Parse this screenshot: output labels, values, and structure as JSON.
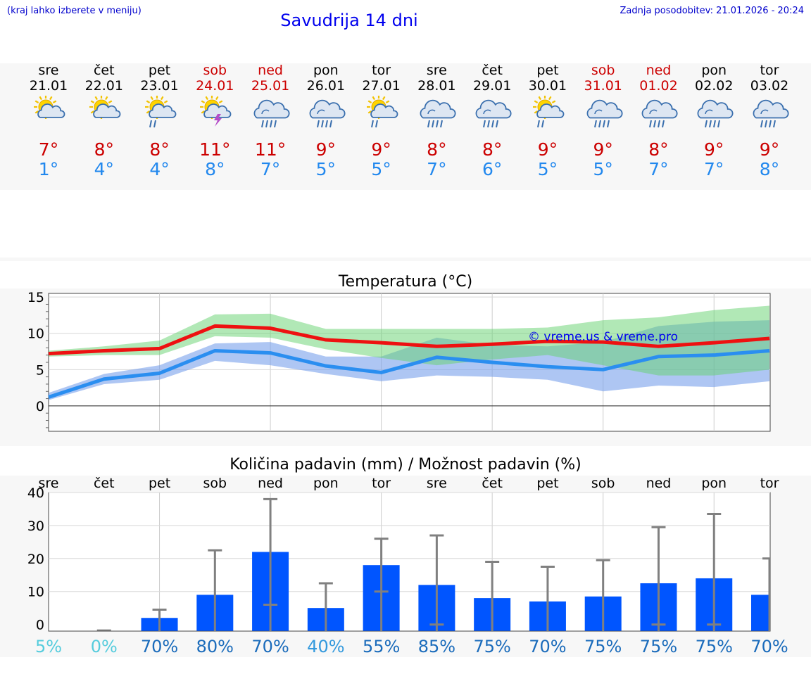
{
  "header": {
    "hint": "(kraj lahko izberete v meniju)",
    "title": "Savudrija 14 dni",
    "updated": "Zadnja posodobitev: 21.01.2026 - 20:24"
  },
  "days": [
    {
      "name": "sre",
      "date": "21.01",
      "weekend": false,
      "icon": "sun-cloud",
      "tmax": "7°",
      "tmin": "1°",
      "max": 7.2,
      "min": 1.2,
      "max_lo": 6.8,
      "max_hi": 7.6,
      "min_lo": 0.8,
      "min_hi": 1.8,
      "prob": "5%",
      "rain": 0,
      "rain_err": 0,
      "pcol": "#55ccdd"
    },
    {
      "name": "čet",
      "date": "22.01",
      "weekend": false,
      "icon": "sun-cloud",
      "tmax": "8°",
      "tmin": "4°",
      "max": 7.6,
      "min": 3.7,
      "max_lo": 7.0,
      "max_hi": 8.2,
      "min_lo": 3.0,
      "min_hi": 4.4,
      "prob": "0%",
      "rain": 0,
      "rain_err": 0,
      "pcol": "#55ccdd"
    },
    {
      "name": "pet",
      "date": "23.01",
      "weekend": false,
      "icon": "sun-cloud-rain",
      "tmax": "8°",
      "tmin": "4°",
      "max": 7.9,
      "min": 4.5,
      "max_lo": 7.0,
      "max_hi": 9.0,
      "min_lo": 3.6,
      "min_hi": 5.6,
      "prob": "70%",
      "rain": 2,
      "rain_err": 4.5,
      "pcol": "#1a6bbb"
    },
    {
      "name": "sob",
      "date": "24.01",
      "weekend": true,
      "icon": "sun-cloud-storm",
      "tmax": "11°",
      "tmin": "8°",
      "max": 11.0,
      "min": 7.6,
      "max_lo": 9.6,
      "max_hi": 12.6,
      "min_lo": 6.2,
      "min_hi": 8.6,
      "prob": "80%",
      "rain": 9,
      "rain_err": 22.5,
      "pcol": "#1a6bbb"
    },
    {
      "name": "ned",
      "date": "25.01",
      "weekend": true,
      "icon": "cloud-rain",
      "tmax": "11°",
      "tmin": "7°",
      "max": 10.7,
      "min": 7.3,
      "max_lo": 9.4,
      "max_hi": 12.7,
      "min_lo": 5.6,
      "min_hi": 8.8,
      "prob": "70%",
      "rain": 22,
      "rain_err": 38,
      "pcol": "#1a6bbb"
    },
    {
      "name": "pon",
      "date": "26.01",
      "weekend": false,
      "icon": "cloud-rain",
      "tmax": "9°",
      "tmin": "5°",
      "max": 9.1,
      "min": 5.5,
      "max_lo": 7.8,
      "max_hi": 10.6,
      "min_lo": 4.4,
      "min_hi": 6.8,
      "prob": "40%",
      "rain": 5,
      "rain_err": 12.5,
      "pcol": "#3399dd"
    },
    {
      "name": "tor",
      "date": "27.01",
      "weekend": false,
      "icon": "sun-cloud-rain",
      "tmax": "9°",
      "tmin": "5°",
      "max": 8.7,
      "min": 4.6,
      "max_lo": 6.6,
      "max_hi": 10.6,
      "min_lo": 3.4,
      "min_hi": 6.8,
      "prob": "55%",
      "rain": 18,
      "rain_err": 26,
      "pcol": "#1a6bbb"
    },
    {
      "name": "sre",
      "date": "28.01",
      "weekend": false,
      "icon": "cloud-rain",
      "tmax": "8°",
      "tmin": "7°",
      "max": 8.2,
      "min": 6.7,
      "max_lo": 5.6,
      "max_hi": 10.6,
      "min_lo": 4.2,
      "min_hi": 9.4,
      "prob": "85%",
      "rain": 12,
      "rain_err": 27,
      "pcol": "#1a6bbb"
    },
    {
      "name": "čet",
      "date": "29.01",
      "weekend": false,
      "icon": "cloud-rain",
      "tmax": "8°",
      "tmin": "6°",
      "max": 8.5,
      "min": 6.0,
      "max_lo": 6.4,
      "max_hi": 10.6,
      "min_lo": 4.0,
      "min_hi": 8.4,
      "prob": "75%",
      "rain": 8,
      "rain_err": 19,
      "pcol": "#1a6bbb"
    },
    {
      "name": "pet",
      "date": "30.01",
      "weekend": false,
      "icon": "sun-cloud-rain",
      "tmax": "9°",
      "tmin": "5°",
      "max": 8.9,
      "min": 5.4,
      "max_lo": 7.0,
      "max_hi": 10.8,
      "min_lo": 3.6,
      "min_hi": 8.2,
      "prob": "70%",
      "rain": 7,
      "rain_err": 17.5,
      "pcol": "#1a6bbb"
    },
    {
      "name": "sob",
      "date": "31.01",
      "weekend": true,
      "icon": "cloud-rain",
      "tmax": "9°",
      "tmin": "5°",
      "max": 8.8,
      "min": 5.0,
      "max_lo": 5.6,
      "max_hi": 11.8,
      "min_lo": 2.0,
      "min_hi": 8.8,
      "prob": "75%",
      "rain": 8.5,
      "rain_err": 19.5,
      "pcol": "#1a6bbb"
    },
    {
      "name": "ned",
      "date": "01.02",
      "weekend": true,
      "icon": "cloud-rain",
      "tmax": "8°",
      "tmin": "7°",
      "max": 8.2,
      "min": 6.8,
      "max_lo": 4.2,
      "max_hi": 12.2,
      "min_lo": 2.8,
      "min_hi": 11.0,
      "prob": "75%",
      "rain": 12.5,
      "rain_err": 29.5,
      "pcol": "#1a6bbb"
    },
    {
      "name": "pon",
      "date": "02.02",
      "weekend": false,
      "icon": "cloud-rain",
      "tmax": "9°",
      "tmin": "7°",
      "max": 8.7,
      "min": 7.0,
      "max_lo": 4.2,
      "max_hi": 13.2,
      "min_lo": 2.6,
      "min_hi": 11.6,
      "prob": "75%",
      "rain": 14,
      "rain_err": 33.5,
      "pcol": "#1a6bbb"
    },
    {
      "name": "tor",
      "date": "03.02",
      "weekend": false,
      "icon": "cloud-rain",
      "tmax": "9°",
      "tmin": "8°",
      "max": 9.3,
      "min": 7.6,
      "max_lo": 5.0,
      "max_hi": 13.8,
      "min_lo": 3.4,
      "min_hi": 11.8,
      "prob": "70%",
      "rain": 9,
      "rain_err": 20,
      "pcol": "#1a6bbb"
    }
  ],
  "temp_chart": {
    "title": "Temperatura (°C)",
    "watermark": "© vreme.us & vreme.pro",
    "ylim": [
      -3.5,
      15.5
    ],
    "yticks": [
      0,
      5,
      10,
      15
    ],
    "ytick_labels": [
      "0",
      "5",
      "10",
      "15"
    ]
  },
  "rain_chart": {
    "title": "Količina padavin (mm) / Možnost padavin (%)",
    "ylim": [
      -2,
      40
    ],
    "yticks": [
      0,
      10,
      20,
      30,
      40
    ],
    "ytick_labels": [
      "0",
      "10",
      "20",
      "30",
      "40"
    ]
  },
  "chart_data": [
    {
      "type": "line",
      "title": "Temperatura (°C)",
      "x": [
        "21.01",
        "22.01",
        "23.01",
        "24.01",
        "25.01",
        "26.01",
        "27.01",
        "28.01",
        "29.01",
        "30.01",
        "31.01",
        "01.02",
        "02.02",
        "03.02"
      ],
      "series": [
        {
          "name": "max",
          "values": [
            7.2,
            7.6,
            7.9,
            11.0,
            10.7,
            9.1,
            8.7,
            8.2,
            8.5,
            8.9,
            8.8,
            8.2,
            8.7,
            9.3
          ]
        },
        {
          "name": "min",
          "values": [
            1.2,
            3.7,
            4.5,
            7.6,
            7.3,
            5.5,
            4.6,
            6.7,
            6.0,
            5.4,
            5.0,
            6.8,
            7.0,
            7.6
          ]
        }
      ],
      "ylim": [
        -3.5,
        15.5
      ]
    },
    {
      "type": "bar",
      "title": "Količina padavin (mm) / Možnost padavin (%)",
      "categories": [
        "sre",
        "čet",
        "pet",
        "sob",
        "ned",
        "pon",
        "tor",
        "sre",
        "čet",
        "pet",
        "sob",
        "ned",
        "pon",
        "tor"
      ],
      "values": [
        0,
        0,
        2,
        9,
        22,
        5,
        18,
        12,
        8,
        7,
        8.5,
        12.5,
        14,
        9
      ],
      "error_upper": [
        0,
        0,
        4.5,
        22.5,
        38,
        12.5,
        26,
        27,
        19,
        17.5,
        19.5,
        29.5,
        33.5,
        20
      ],
      "probability": [
        "5%",
        "0%",
        "70%",
        "80%",
        "70%",
        "40%",
        "55%",
        "85%",
        "75%",
        "70%",
        "75%",
        "75%",
        "75%",
        "70%"
      ],
      "ylim": [
        -2,
        40
      ]
    }
  ]
}
